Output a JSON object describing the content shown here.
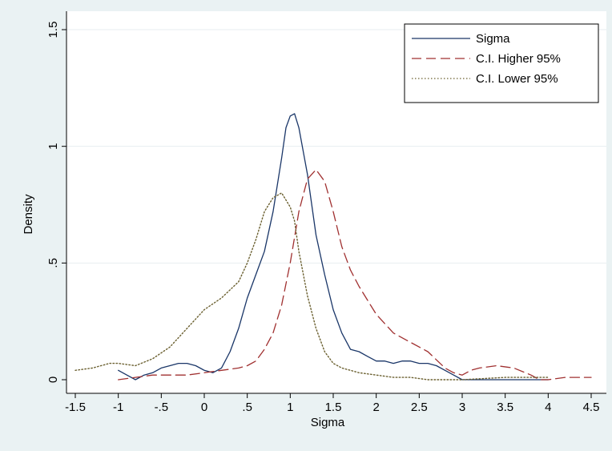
{
  "chart_data": {
    "type": "line",
    "title": "",
    "xlabel": "Sigma",
    "ylabel": "Density",
    "xlim": [
      -1.5,
      4.5
    ],
    "ylim": [
      0,
      1.5
    ],
    "xticks": [
      -1.5,
      -1,
      -0.5,
      0,
      0.5,
      1,
      1.5,
      2,
      2.5,
      3,
      3.5,
      4,
      4.5
    ],
    "xtick_labels": [
      "-1.5",
      "-1",
      "-.5",
      "0",
      ".5",
      "1",
      "1.5",
      "2",
      "2.5",
      "3",
      "3.5",
      "4",
      "4.5"
    ],
    "yticks": [
      0,
      0.5,
      1,
      1.5
    ],
    "ytick_labels": [
      "0",
      ".5",
      "1",
      "1.5"
    ],
    "grid": true,
    "legend_position": "top-right",
    "series": [
      {
        "name": "Sigma",
        "color": "#1a3668",
        "style": "solid",
        "x": [
          -1.0,
          -0.9,
          -0.8,
          -0.7,
          -0.6,
          -0.5,
          -0.4,
          -0.3,
          -0.2,
          -0.1,
          0.0,
          0.1,
          0.2,
          0.3,
          0.4,
          0.5,
          0.6,
          0.7,
          0.8,
          0.9,
          0.95,
          1.0,
          1.05,
          1.1,
          1.2,
          1.3,
          1.4,
          1.5,
          1.6,
          1.7,
          1.8,
          1.9,
          2.0,
          2.1,
          2.2,
          2.3,
          2.4,
          2.5,
          2.6,
          2.7,
          2.8,
          2.9,
          3.0,
          3.5,
          4.0
        ],
        "y": [
          0.04,
          0.02,
          0.0,
          0.02,
          0.03,
          0.05,
          0.06,
          0.07,
          0.07,
          0.06,
          0.04,
          0.03,
          0.05,
          0.12,
          0.22,
          0.35,
          0.45,
          0.55,
          0.72,
          0.95,
          1.08,
          1.13,
          1.14,
          1.08,
          0.88,
          0.62,
          0.45,
          0.3,
          0.2,
          0.13,
          0.12,
          0.1,
          0.08,
          0.08,
          0.07,
          0.08,
          0.08,
          0.07,
          0.07,
          0.06,
          0.04,
          0.02,
          0.0,
          0.0,
          0.0
        ]
      },
      {
        "name": "C.I. Higher 95%",
        "color": "#a03030",
        "style": "dashed",
        "x": [
          -1.0,
          -0.8,
          -0.6,
          -0.4,
          -0.2,
          0.0,
          0.2,
          0.4,
          0.5,
          0.6,
          0.7,
          0.8,
          0.9,
          1.0,
          1.1,
          1.2,
          1.3,
          1.4,
          1.5,
          1.6,
          1.7,
          1.8,
          1.9,
          2.0,
          2.2,
          2.4,
          2.6,
          2.8,
          2.9,
          3.0,
          3.1,
          3.2,
          3.4,
          3.6,
          3.8,
          3.9,
          4.0,
          4.2,
          4.5
        ],
        "y": [
          0.0,
          0.01,
          0.02,
          0.02,
          0.02,
          0.03,
          0.04,
          0.05,
          0.06,
          0.08,
          0.13,
          0.2,
          0.32,
          0.5,
          0.72,
          0.86,
          0.9,
          0.85,
          0.72,
          0.57,
          0.47,
          0.4,
          0.34,
          0.28,
          0.2,
          0.16,
          0.12,
          0.05,
          0.03,
          0.02,
          0.04,
          0.05,
          0.06,
          0.05,
          0.02,
          0.0,
          0.0,
          0.01,
          0.01
        ]
      },
      {
        "name": "C.I. Lower 95%",
        "color": "#6b6030",
        "style": "dotted",
        "x": [
          -1.5,
          -1.3,
          -1.1,
          -1.0,
          -0.8,
          -0.6,
          -0.4,
          -0.2,
          0.0,
          0.2,
          0.4,
          0.5,
          0.6,
          0.7,
          0.8,
          0.9,
          1.0,
          1.05,
          1.1,
          1.2,
          1.3,
          1.4,
          1.5,
          1.6,
          1.7,
          1.8,
          2.0,
          2.2,
          2.4,
          2.6,
          2.8,
          3.0,
          3.5,
          4.0
        ],
        "y": [
          0.04,
          0.05,
          0.07,
          0.07,
          0.06,
          0.09,
          0.14,
          0.22,
          0.3,
          0.35,
          0.42,
          0.5,
          0.6,
          0.72,
          0.78,
          0.8,
          0.74,
          0.68,
          0.55,
          0.36,
          0.22,
          0.12,
          0.07,
          0.05,
          0.04,
          0.03,
          0.02,
          0.01,
          0.01,
          0.0,
          0.0,
          0.0,
          0.01,
          0.01
        ]
      }
    ]
  }
}
